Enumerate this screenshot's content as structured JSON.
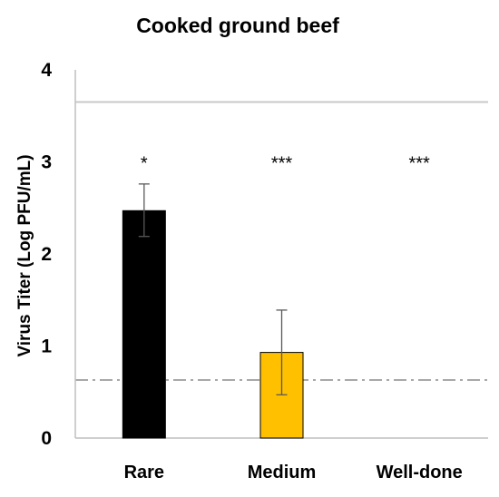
{
  "chart_data": {
    "type": "bar",
    "title": "Cooked ground beef",
    "xlabel": "",
    "ylabel": "Virus Titer (Log PFU/mL)",
    "ylim": [
      0,
      4
    ],
    "yticks": [
      "0",
      "1",
      "2",
      "3",
      "4"
    ],
    "categories": [
      "Rare",
      "Medium",
      "Well-done"
    ],
    "values": [
      2.47,
      0.93,
      null
    ],
    "error_low": [
      2.19,
      0.47,
      null
    ],
    "error_high": [
      2.76,
      1.39,
      null
    ],
    "bar_colors": [
      "#000000",
      "#FFC000",
      null
    ],
    "significance": [
      "*",
      "***",
      "***"
    ],
    "reference_lines": [
      {
        "y": 3.65,
        "style": "solid",
        "color": "#c8c8c8"
      },
      {
        "y": 0.63,
        "style": "dash-dot",
        "color": "#a8a8a8"
      }
    ],
    "grid": false,
    "legend": "none"
  }
}
